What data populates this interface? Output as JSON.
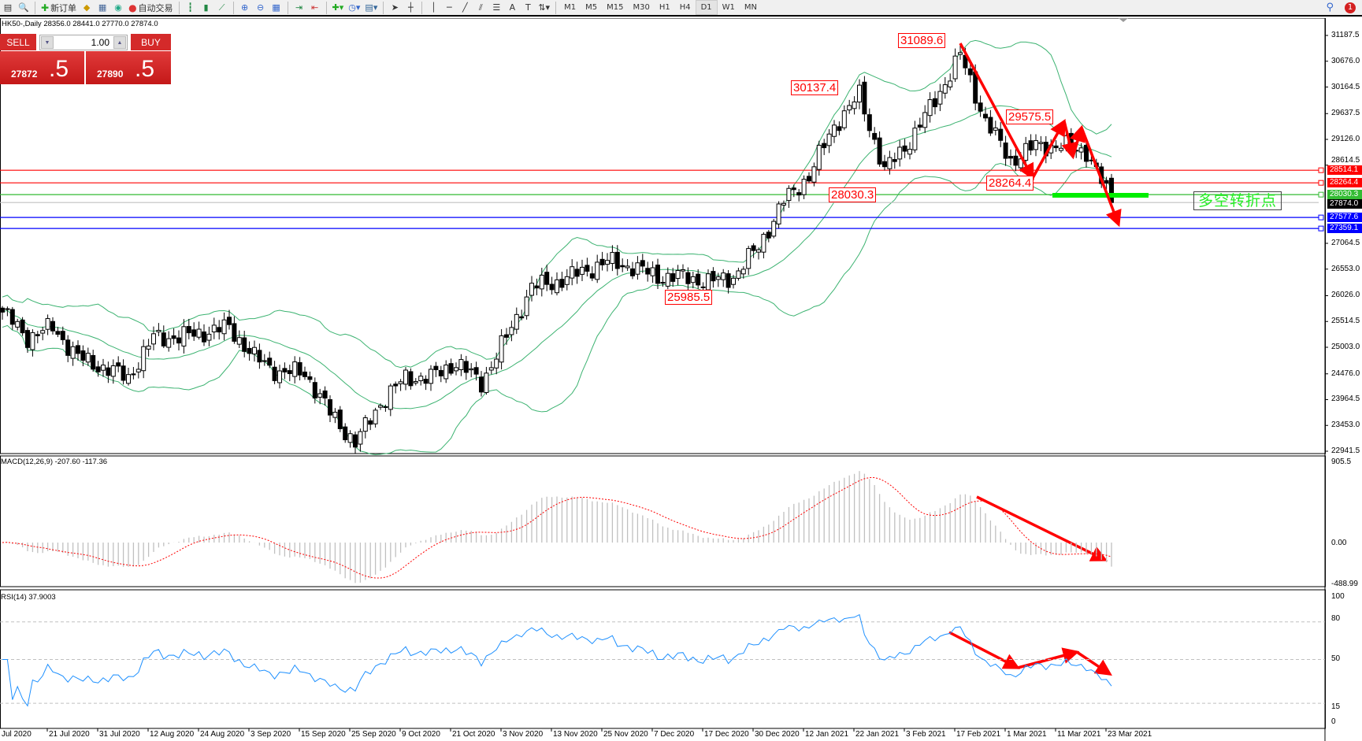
{
  "toolbar": {
    "new_order": "新订单",
    "auto_trading": "自动交易",
    "timeframes": [
      "M1",
      "M5",
      "M15",
      "M30",
      "H1",
      "H4",
      "D1",
      "W1",
      "MN"
    ],
    "active_timeframe": "D1",
    "notification_count": "1"
  },
  "chart_header": "HK50-,Daily  28356.0 28441.0 27770.0 27874.0",
  "trade_panel": {
    "sell_label": "SELL",
    "buy_label": "BUY",
    "lot": "1.00",
    "sell_price_main": "27872",
    "sell_price_big": ".5",
    "buy_price_main": "27890",
    "buy_price_big": ".5"
  },
  "chart_data": {
    "type": "candlestick",
    "symbol": "HK50-",
    "timeframe": "Daily",
    "last_bar": {
      "open": 28356.0,
      "high": 28441.0,
      "low": 27770.0,
      "close": 27874.0
    },
    "weekly_close": [
      25700,
      25200,
      25400,
      24800,
      24600,
      24400,
      25200,
      25200,
      25300,
      25400,
      24800,
      24500,
      24500,
      23700,
      23100,
      23900,
      24400,
      24400,
      24700,
      24300,
      25200,
      26200,
      26300,
      26500,
      26700,
      26600,
      26400,
      26400,
      26300,
      26400,
      27000,
      27900,
      28400,
      29400,
      30000,
      28500,
      29100,
      29900,
      30800,
      29500,
      28700,
      29000,
      29000,
      28900,
      27874
    ],
    "ylim": [
      22941.5,
      31187.5
    ],
    "price_ticks": [
      "31187.5",
      "30676.0",
      "30164.5",
      "29637.5",
      "29126.0",
      "28614.5",
      "27064.5",
      "26553.0",
      "26026.0",
      "25514.5",
      "25003.0",
      "24476.0",
      "23964.5",
      "23453.0",
      "22941.5"
    ],
    "date_labels": [
      "Jul 2020",
      "21 Jul 2020",
      "31 Jul 2020",
      "12 Aug 2020",
      "24 Aug 2020",
      "3 Sep 2020",
      "15 Sep 2020",
      "25 Sep 2020",
      "9 Oct 2020",
      "21 Oct 2020",
      "3 Nov 2020",
      "13 Nov 2020",
      "25 Nov 2020",
      "7 Dec 2020",
      "17 Dec 2020",
      "30 Dec 2020",
      "12 Jan 2021",
      "22 Jan 2021",
      "3 Feb 2021",
      "17 Feb 2021",
      "1 Mar 2021",
      "11 Mar 2021",
      "23 Mar 2021"
    ],
    "indicators": {
      "bollinger": {
        "color": "#3cb371"
      },
      "macd": {
        "label": "MACD(12,26,9) -207.60 -117.36",
        "ticks": [
          "905.5",
          "0.00",
          "-488.99"
        ],
        "range": [
          -488.99,
          905.5
        ],
        "signal_color": "#ff0000",
        "hist_color": "#c0c0c0"
      },
      "rsi": {
        "label": "RSI(14) 37.9003",
        "ticks": [
          "100",
          "80",
          "50",
          "15",
          "0"
        ],
        "levels": [
          80,
          50,
          15
        ],
        "color": "#1e90ff"
      }
    },
    "price_annotations": [
      "31089.6",
      "30137.4",
      "29575.5",
      "28264.4",
      "28030.3",
      "25985.5"
    ],
    "horizontal_lines": [
      {
        "price": "28514.1",
        "color": "#ff0000"
      },
      {
        "price": "28264.4",
        "color": "#ff0000"
      },
      {
        "price": "28030.3",
        "color": "#33bb33"
      },
      {
        "price": "27874.0",
        "color": "#000000",
        "line_color": "#c0c0c0"
      },
      {
        "price": "27577.6",
        "color": "#0000ff"
      },
      {
        "price": "27359.1",
        "color": "#0000ff"
      }
    ],
    "note_text": "多空转折点"
  }
}
